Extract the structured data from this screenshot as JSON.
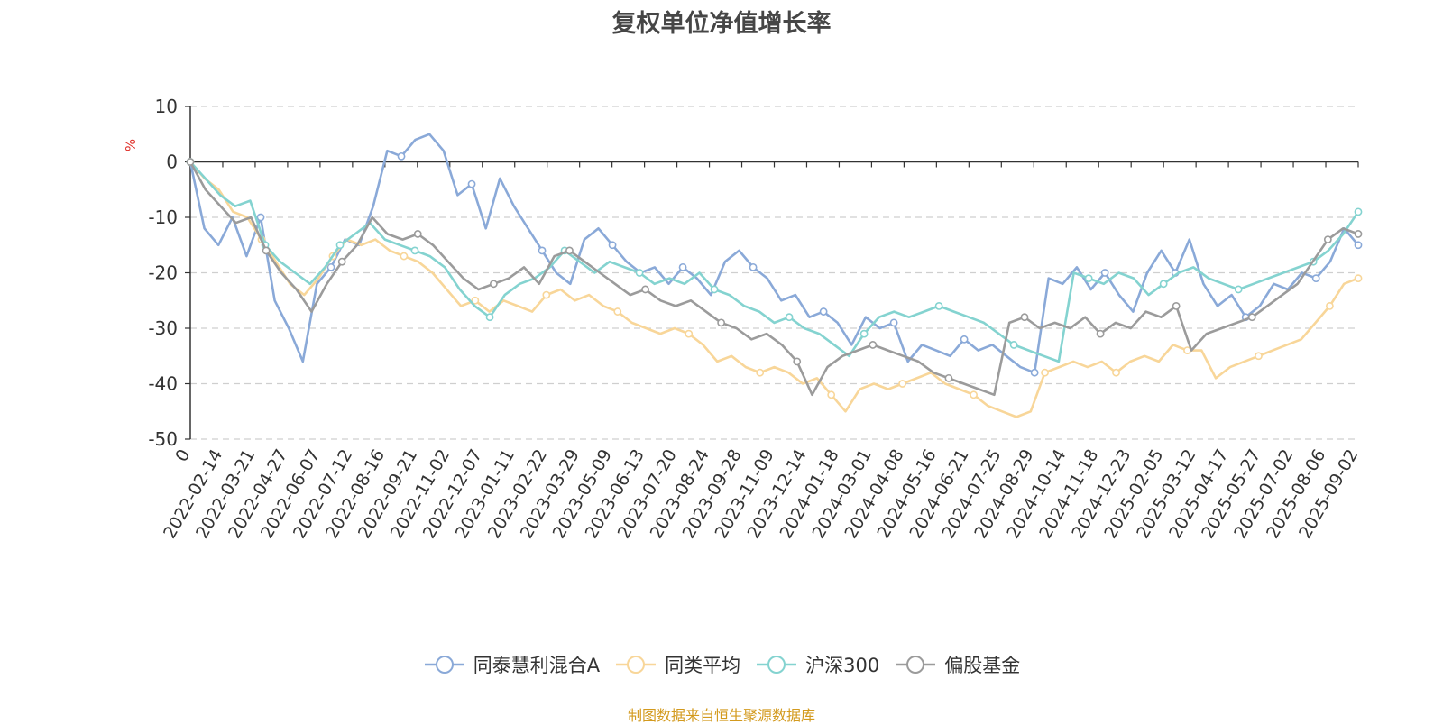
{
  "chart_data": {
    "type": "line",
    "title": "复权单位净值增长率",
    "ylabel": "%",
    "ylim": [
      -50,
      10
    ],
    "yticks": [
      10,
      0,
      -10,
      -20,
      -30,
      -40,
      -50
    ],
    "grid": true,
    "legend_position": "bottom-center",
    "x_tick_labels": [
      "0",
      "2022-02-14",
      "2022-03-21",
      "2022-04-27",
      "2022-06-07",
      "2022-07-12",
      "2022-08-16",
      "2022-09-21",
      "2022-11-02",
      "2022-12-07",
      "2023-01-11",
      "2023-02-22",
      "2023-03-29",
      "2023-05-09",
      "2023-06-13",
      "2023-07-20",
      "2023-08-24",
      "2023-09-28",
      "2023-11-09",
      "2023-12-14",
      "2024-01-18",
      "2024-03-01",
      "2024-04-08",
      "2024-05-16",
      "2024-06-21",
      "2024-07-25",
      "2024-08-29",
      "2024-10-14",
      "2024-11-18",
      "2024-12-23",
      "2025-02-05",
      "2025-03-12",
      "2025-04-17",
      "2025-05-27",
      "2025-07-02",
      "2025-08-06",
      "2025-09-02"
    ],
    "series": [
      {
        "name": "同泰慧利混合A",
        "color": "#8aa9d8",
        "values": [
          0,
          -12,
          -15,
          -10,
          -17,
          -10,
          -25,
          -30,
          -36,
          -22,
          -19,
          -14,
          -15,
          -8,
          2,
          1,
          4,
          5,
          2,
          -6,
          -4,
          -12,
          -3,
          -8,
          -12,
          -16,
          -20,
          -22,
          -14,
          -12,
          -15,
          -18,
          -20,
          -19,
          -22,
          -19,
          -21,
          -24,
          -18,
          -16,
          -19,
          -21,
          -25,
          -24,
          -28,
          -27,
          -29,
          -33,
          -28,
          -30,
          -29,
          -36,
          -33,
          -34,
          -35,
          -32,
          -34,
          -33,
          -35,
          -37,
          -38,
          -21,
          -22,
          -19,
          -23,
          -20,
          -24,
          -27,
          -20,
          -16,
          -20,
          -14,
          -22,
          -26,
          -24,
          -28,
          -26,
          -22,
          -23,
          -20,
          -21,
          -18,
          -12,
          -15
        ]
      },
      {
        "name": "同类平均",
        "color": "#f8d699",
        "values": [
          0,
          -3,
          -5,
          -9,
          -10,
          -14,
          -18,
          -22,
          -24,
          -21,
          -17,
          -14,
          -15,
          -14,
          -16,
          -17,
          -18,
          -20,
          -23,
          -26,
          -25,
          -27,
          -25,
          -26,
          -27,
          -24,
          -23,
          -25,
          -24,
          -26,
          -27,
          -29,
          -30,
          -31,
          -30,
          -31,
          -33,
          -36,
          -35,
          -37,
          -38,
          -37,
          -38,
          -40,
          -39,
          -42,
          -45,
          -41,
          -40,
          -41,
          -40,
          -39,
          -38,
          -40,
          -41,
          -42,
          -44,
          -45,
          -46,
          -45,
          -38,
          -37,
          -36,
          -37,
          -36,
          -38,
          -36,
          -35,
          -36,
          -33,
          -34,
          -34,
          -39,
          -37,
          -36,
          -35,
          -34,
          -33,
          -32,
          -29,
          -26,
          -22,
          -21
        ]
      },
      {
        "name": "沪深300",
        "color": "#84d3d0",
        "values": [
          0,
          -3,
          -6,
          -8,
          -7,
          -15,
          -18,
          -20,
          -22,
          -19,
          -15,
          -13,
          -11,
          -14,
          -15,
          -16,
          -17,
          -19,
          -23,
          -26,
          -28,
          -24,
          -22,
          -21,
          -19,
          -16,
          -18,
          -20,
          -18,
          -19,
          -20,
          -22,
          -21,
          -22,
          -20,
          -23,
          -24,
          -26,
          -27,
          -29,
          -28,
          -30,
          -31,
          -33,
          -35,
          -31,
          -28,
          -27,
          -28,
          -27,
          -26,
          -27,
          -28,
          -29,
          -31,
          -33,
          -34,
          -35,
          -36,
          -20,
          -21,
          -22,
          -20,
          -21,
          -24,
          -22,
          -20,
          -19,
          -21,
          -22,
          -23,
          -22,
          -21,
          -20,
          -19,
          -18,
          -16,
          -13,
          -9
        ]
      },
      {
        "name": "偏股基金",
        "color": "#9b9b9b",
        "values": [
          0,
          -5,
          -8,
          -11,
          -10,
          -16,
          -20,
          -23,
          -27,
          -22,
          -18,
          -15,
          -10,
          -13,
          -14,
          -13,
          -15,
          -18,
          -21,
          -23,
          -22,
          -21,
          -19,
          -22,
          -17,
          -16,
          -18,
          -20,
          -22,
          -24,
          -23,
          -25,
          -26,
          -25,
          -27,
          -29,
          -30,
          -32,
          -31,
          -33,
          -36,
          -42,
          -37,
          -35,
          -34,
          -33,
          -34,
          -35,
          -36,
          -38,
          -39,
          -40,
          -41,
          -42,
          -29,
          -28,
          -30,
          -29,
          -30,
          -28,
          -31,
          -29,
          -30,
          -27,
          -28,
          -26,
          -34,
          -31,
          -30,
          -29,
          -28,
          -26,
          -24,
          -22,
          -18,
          -14,
          -12,
          -13
        ]
      }
    ]
  },
  "legend": {
    "items": [
      "同泰慧利混合A",
      "同类平均",
      "沪深300",
      "偏股基金"
    ]
  },
  "footer": {
    "source_note": "制图数据来自恒生聚源数据库"
  }
}
